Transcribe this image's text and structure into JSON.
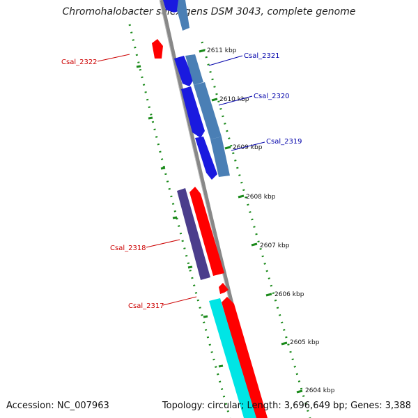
{
  "title": "Chromohalobacter salexigens DSM 3043, complete genome",
  "accession": "Accession: NC_007963",
  "summary": "Topology: circular; Length: 3,696,649 bp; Genes: 3,388",
  "ticks": [
    {
      "label": "2611 kbp"
    },
    {
      "label": "2610 kbp"
    },
    {
      "label": "2609 kbp"
    },
    {
      "label": "2608 kbp"
    },
    {
      "label": "2607 kbp"
    },
    {
      "label": "2606 kbp"
    },
    {
      "label": "2605 kbp"
    },
    {
      "label": "2604 kbp"
    }
  ],
  "genes": [
    {
      "name": "Csal_2322",
      "strand": "left"
    },
    {
      "name": "Csal_2321",
      "strand": "right"
    },
    {
      "name": "Csal_2320",
      "strand": "right"
    },
    {
      "name": "Csal_2319",
      "strand": "right"
    },
    {
      "name": "Csal_2318",
      "strand": "left"
    },
    {
      "name": "Csal_2317",
      "strand": "left"
    }
  ],
  "colors": {
    "forward_gene": "#ff0000",
    "reverse_gene": "#0000ff",
    "forward_label": "#cc0000",
    "reverse_label": "#0000aa",
    "ticks": "#1a8a1a",
    "backbone": "#808080",
    "cds_blue": "#4a7fb5",
    "cds_purple": "#4b3d8c",
    "cds_cyan": "#00e5e5"
  }
}
